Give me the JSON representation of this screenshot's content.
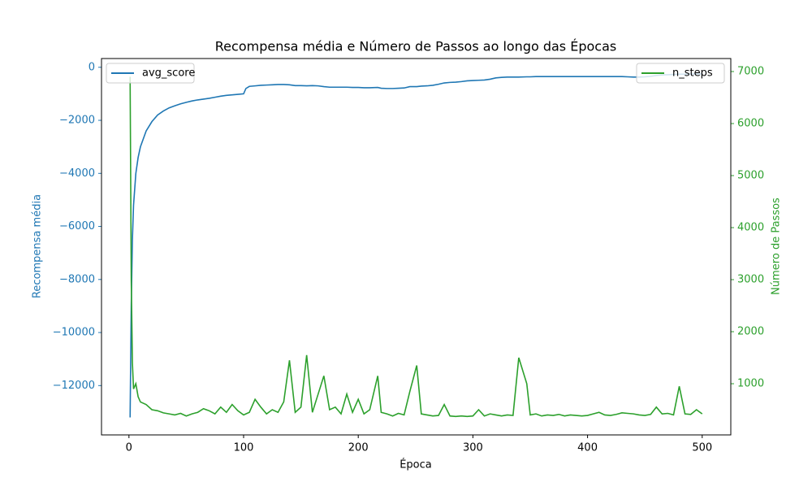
{
  "chart_data": {
    "type": "line",
    "title": "Recompensa média e Número de Passos ao longo das Épocas",
    "xlabel": "Época",
    "ylabel": "Recompensa média",
    "y2label": "Número de Passos",
    "x": [
      1,
      2,
      3,
      4,
      6,
      8,
      10,
      15,
      20,
      25,
      30,
      35,
      40,
      45,
      50,
      55,
      60,
      65,
      70,
      75,
      80,
      85,
      90,
      95,
      100,
      102,
      105,
      110,
      115,
      120,
      125,
      130,
      135,
      140,
      145,
      150,
      155,
      160,
      165,
      170,
      175,
      180,
      185,
      190,
      195,
      200,
      205,
      210,
      217,
      220,
      225,
      230,
      235,
      240,
      245,
      251,
      255,
      260,
      265,
      270,
      275,
      280,
      285,
      290,
      295,
      300,
      305,
      310,
      315,
      320,
      325,
      330,
      335,
      340,
      347,
      350,
      355,
      360,
      365,
      370,
      375,
      380,
      385,
      390,
      395,
      400,
      405,
      410,
      415,
      420,
      425,
      430,
      435,
      440,
      445,
      450,
      455,
      460,
      465,
      470,
      475,
      480,
      485,
      490,
      495,
      500
    ],
    "series": [
      {
        "name": "avg_score",
        "color": "#1f77b4",
        "axis": "y",
        "legend": "upper left",
        "values": [
          -13200,
          -9000,
          -6500,
          -5200,
          -4000,
          -3400,
          -3000,
          -2400,
          -2050,
          -1800,
          -1650,
          -1530,
          -1450,
          -1380,
          -1320,
          -1270,
          -1230,
          -1200,
          -1170,
          -1130,
          -1090,
          -1060,
          -1040,
          -1020,
          -1000,
          -800,
          -720,
          -700,
          -680,
          -670,
          -660,
          -650,
          -650,
          -660,
          -690,
          -690,
          -700,
          -690,
          -700,
          -730,
          -750,
          -750,
          -750,
          -750,
          -760,
          -760,
          -770,
          -770,
          -760,
          -790,
          -800,
          -800,
          -790,
          -780,
          -730,
          -730,
          -710,
          -700,
          -680,
          -640,
          -590,
          -570,
          -560,
          -540,
          -510,
          -500,
          -490,
          -480,
          -450,
          -400,
          -380,
          -370,
          -370,
          -370,
          -360,
          -360,
          -350,
          -350,
          -350,
          -350,
          -350,
          -350,
          -350,
          -350,
          -350,
          -350,
          -350,
          -350,
          -350,
          -350,
          -350,
          -350,
          -360,
          -370,
          -370,
          -360,
          -340,
          -310,
          -290,
          -280,
          -270,
          -260,
          -260,
          -250,
          -250,
          -250
        ]
      },
      {
        "name": "n_steps",
        "color": "#2ca02c",
        "axis": "y2",
        "legend": "upper right",
        "values": [
          6900,
          3000,
          1400,
          900,
          1000,
          750,
          650,
          600,
          500,
          480,
          440,
          420,
          400,
          430,
          380,
          420,
          450,
          520,
          480,
          420,
          550,
          450,
          600,
          480,
          400,
          420,
          450,
          700,
          550,
          420,
          500,
          450,
          650,
          1450,
          450,
          550,
          1550,
          450,
          800,
          1150,
          500,
          550,
          420,
          800,
          450,
          700,
          420,
          500,
          1150,
          450,
          420,
          380,
          430,
          400,
          850,
          1350,
          420,
          400,
          380,
          390,
          600,
          380,
          370,
          380,
          370,
          380,
          500,
          380,
          420,
          400,
          380,
          400,
          390,
          1500,
          1000,
          400,
          420,
          380,
          400,
          390,
          410,
          380,
          400,
          390,
          380,
          390,
          420,
          450,
          400,
          390,
          410,
          440,
          430,
          420,
          400,
          390,
          410,
          550,
          420,
          430,
          400,
          950,
          420,
          410,
          500,
          420
        ]
      }
    ],
    "xlim": [
      -23.95,
      524.95
    ],
    "xticks": [
      0,
      100,
      200,
      300,
      400,
      500
    ],
    "ylim": [
      -13860,
      330
    ],
    "yticks": [
      {
        "value": -12000,
        "label": "−12000"
      },
      {
        "value": -10000,
        "label": "−10000"
      },
      {
        "value": -8000,
        "label": "−8000"
      },
      {
        "value": -6000,
        "label": "−6000"
      },
      {
        "value": -4000,
        "label": "−4000"
      },
      {
        "value": -2000,
        "label": "−2000"
      },
      0
    ],
    "y2lim": [
      16,
      7250
    ],
    "y2ticks": [
      1000,
      2000,
      3000,
      4000,
      5000,
      6000,
      7000
    ]
  }
}
